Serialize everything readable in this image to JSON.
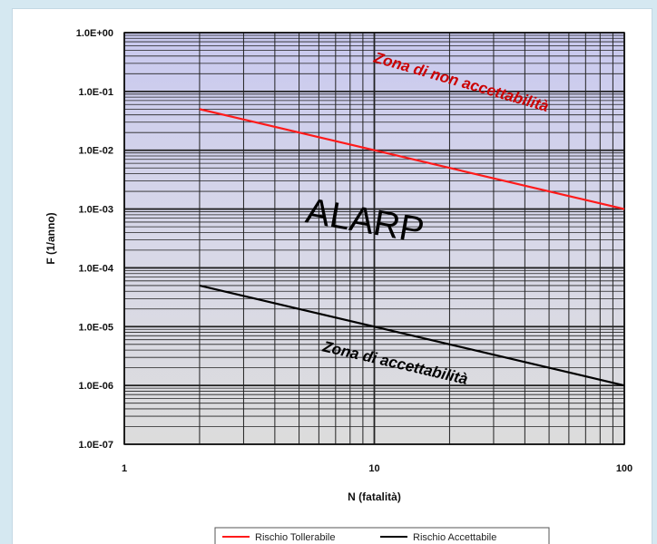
{
  "chart_data": {
    "type": "line",
    "xscale": "log",
    "yscale": "log",
    "xlim": [
      1,
      100
    ],
    "ylim": [
      1e-07,
      1
    ],
    "xticks": [
      {
        "value": 1,
        "label": "1"
      },
      {
        "value": 10,
        "label": "10"
      },
      {
        "value": 100,
        "label": "100"
      }
    ],
    "yticks": [
      {
        "value": 1,
        "label": "1.0E+00"
      },
      {
        "value": 0.1,
        "label": "1.0E-01"
      },
      {
        "value": 0.01,
        "label": "1.0E-02"
      },
      {
        "value": 0.001,
        "label": "1.0E-03"
      },
      {
        "value": 0.0001,
        "label": "1.0E-04"
      },
      {
        "value": 1e-05,
        "label": "1.0E-05"
      },
      {
        "value": 1e-06,
        "label": "1.0E-06"
      },
      {
        "value": 1e-07,
        "label": "1.0E-07"
      }
    ],
    "xlabel": "N (fatalità)",
    "ylabel": "F (1/anno)",
    "grid": true,
    "legend_position": "bottom",
    "series": [
      {
        "name": "Rischio Tollerabile",
        "color": "#ff1a1a",
        "x": [
          2,
          100
        ],
        "y": [
          0.05,
          0.001
        ]
      },
      {
        "name": "Rischio Accettabile",
        "color": "#000000",
        "x": [
          2,
          100
        ],
        "y": [
          5e-05,
          1e-06
        ]
      }
    ],
    "annotations": [
      {
        "text": "Zona di non accettabilità",
        "x": 22,
        "y": 0.12,
        "color": "#cc0000"
      },
      {
        "text": "ALARP",
        "x": 9,
        "y": 0.0004,
        "color": "#000000"
      },
      {
        "text": "Zona di accettabilità",
        "x": 12,
        "y": 2e-06,
        "color": "#000000"
      }
    ],
    "colors": {
      "zone_upper": "#c9c9ef",
      "zone_middle": "#d8d8e8",
      "zone_lower": "#dcdcdc",
      "grid": "#222222"
    }
  }
}
